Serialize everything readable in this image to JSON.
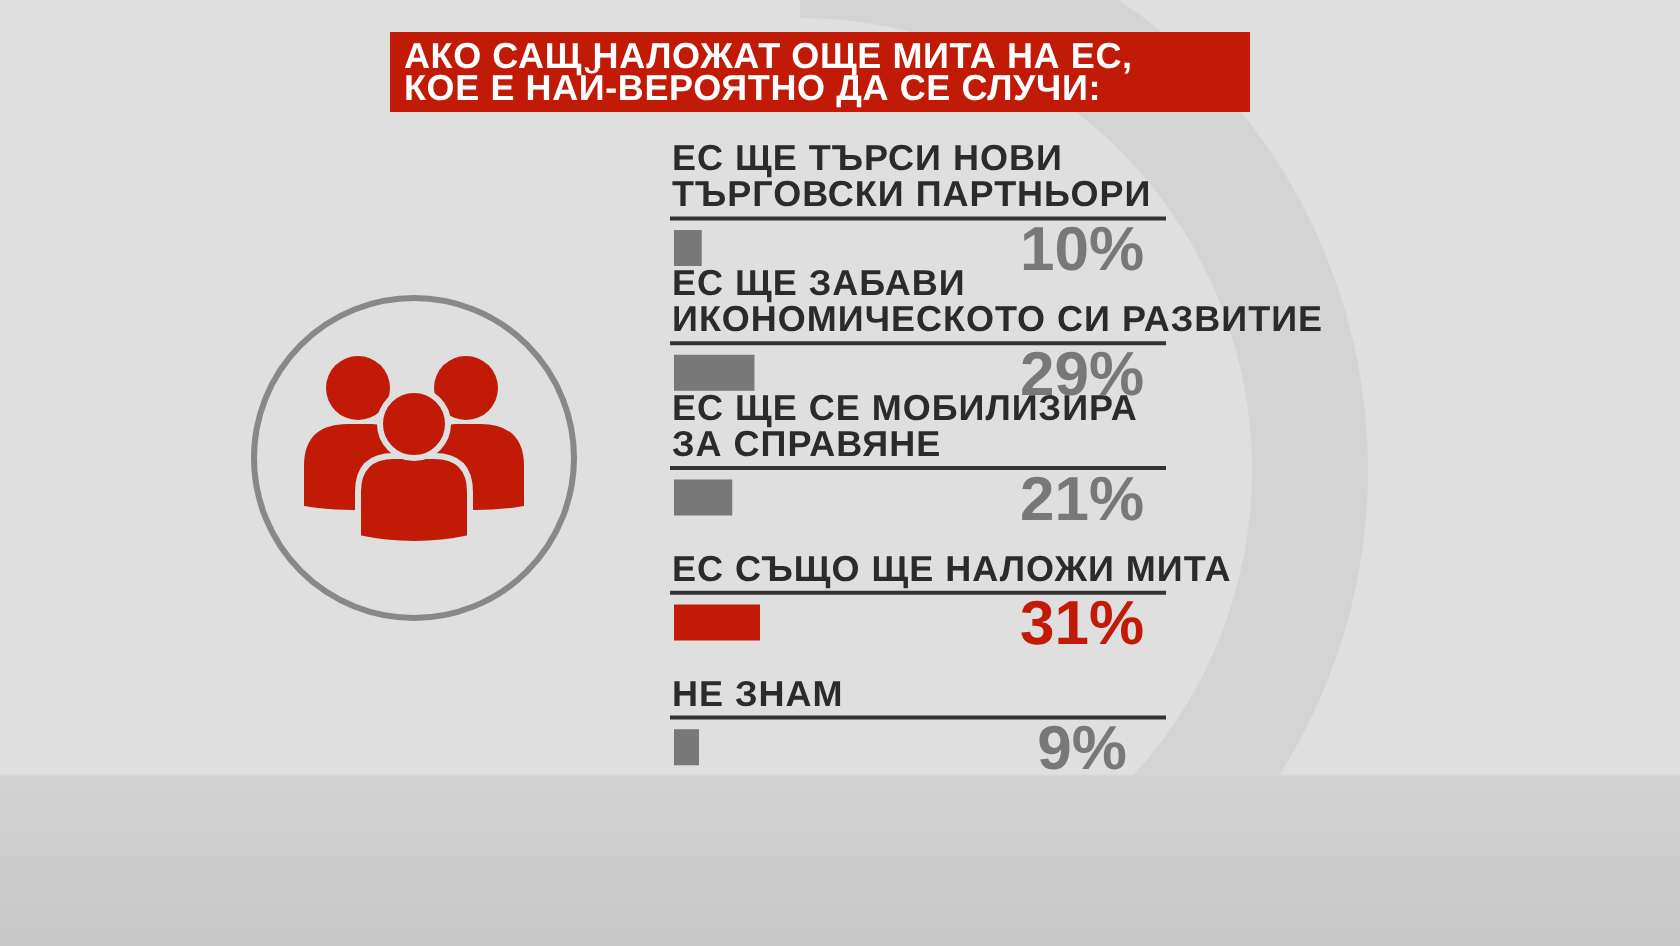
{
  "chart_data": {
    "type": "bar",
    "orientation": "horizontal",
    "title": "АКО САЩ НАЛОЖАТ ОЩЕ МИТА НА ЕС,\nКОЕ Е НАЙ-ВЕРОЯТНО ДА СЕ СЛУЧИ:",
    "categories": [
      "ЕС ЩЕ ТЪРСИ НОВИ\nТЪРГОВСКИ ПАРТНЬОРИ",
      "ЕС ЩЕ ЗАБАВИ\nИКОНОМИЧЕСКОТО СИ РАЗВИТИЕ",
      "ЕС ЩЕ СЕ МОБИЛИЗИРА\nЗА СПРАВЯНЕ",
      "ЕС СЪЩО ЩЕ НАЛОЖИ МИТА",
      "НЕ ЗНАМ"
    ],
    "values": [
      10,
      29,
      21,
      31,
      9
    ],
    "colors": [
      "#787878",
      "#787878",
      "#787878",
      "#c11a07",
      "#787878"
    ],
    "value_labels": [
      "10%",
      "29%",
      "21%",
      "31%",
      "9%"
    ],
    "tick_labels": "y"
  }
}
